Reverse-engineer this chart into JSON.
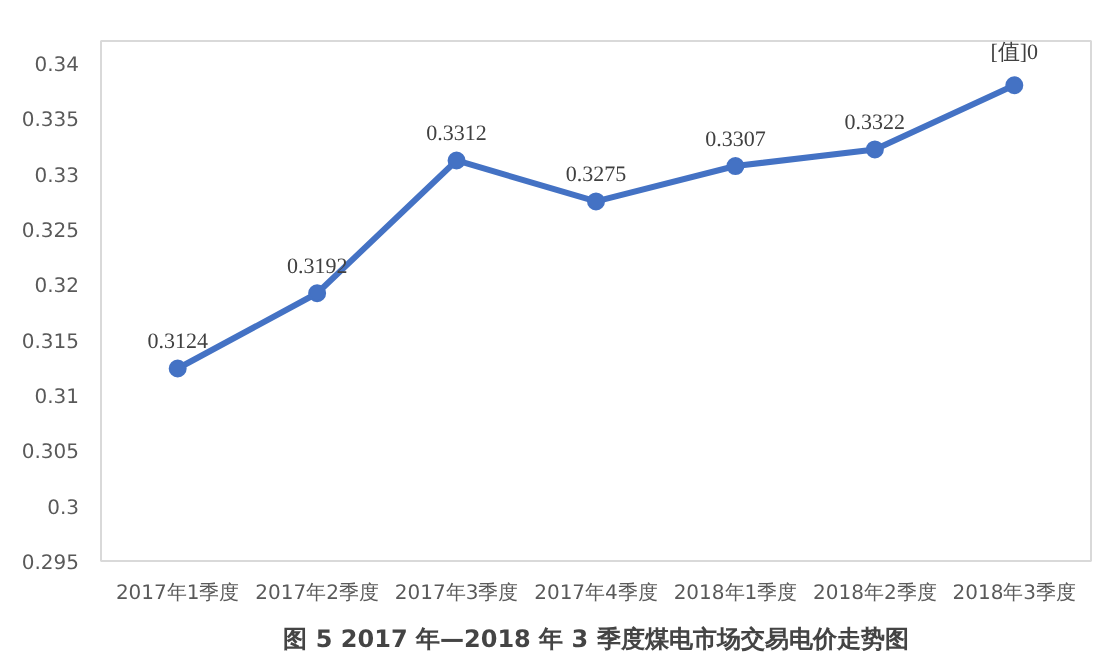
{
  "chart_data": {
    "type": "line",
    "categories": [
      "2017年1季度",
      "2017年2季度",
      "2017年3季度",
      "2017年4季度",
      "2018年1季度",
      "2018年2季度",
      "2018年3季度"
    ],
    "series": [
      {
        "color": "#4472c4",
        "values": [
          0.3124,
          0.3192,
          0.3312,
          0.3275,
          0.3307,
          0.3322,
          0.338
        ],
        "value_labels": [
          "0.3124",
          "0.3192",
          "0.3312",
          "0.3275",
          "0.3307",
          "0.3322",
          "[值]0"
        ]
      }
    ],
    "ylim": [
      0.295,
      0.342
    ],
    "yticks": [
      0.295,
      0.3,
      0.305,
      0.31,
      0.315,
      0.32,
      0.325,
      0.33,
      0.335,
      0.34
    ],
    "grid": false,
    "marker": "circle",
    "line_style": "solid",
    "annotations": [
      "图 5 2017 年—2018 年 3 季度煤电市场交易电价走势图"
    ]
  }
}
